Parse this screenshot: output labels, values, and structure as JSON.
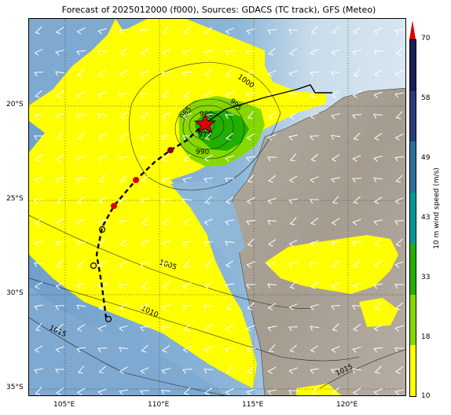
{
  "title": "Forecast of 2025012000 (f000), Sources: GDACS (TC track), GFS (Meteo)",
  "lat_labels": [
    "20°S",
    "25°S",
    "30°S",
    "35°S"
  ],
  "lon_labels": [
    "105°E",
    "110°E",
    "115°E",
    "120°E"
  ],
  "colorbar": {
    "label": "10 m wind speed (m/s)",
    "ticks": [
      "10",
      "18",
      "33",
      "43",
      "49",
      "58",
      "70"
    ],
    "colors": [
      "#ffff00",
      "#86d900",
      "#22b000",
      "#009999",
      "#2a6e9a",
      "#283c7a",
      "#1a1f57"
    ],
    "extend_color": "#e00000"
  },
  "isobar_labels": [
    "1000",
    "995",
    "985",
    "980",
    "975",
    "990",
    "1005",
    "1010",
    "1015",
    "1015"
  ],
  "storm_center_color": "#e00000",
  "track_color": "#000000"
}
